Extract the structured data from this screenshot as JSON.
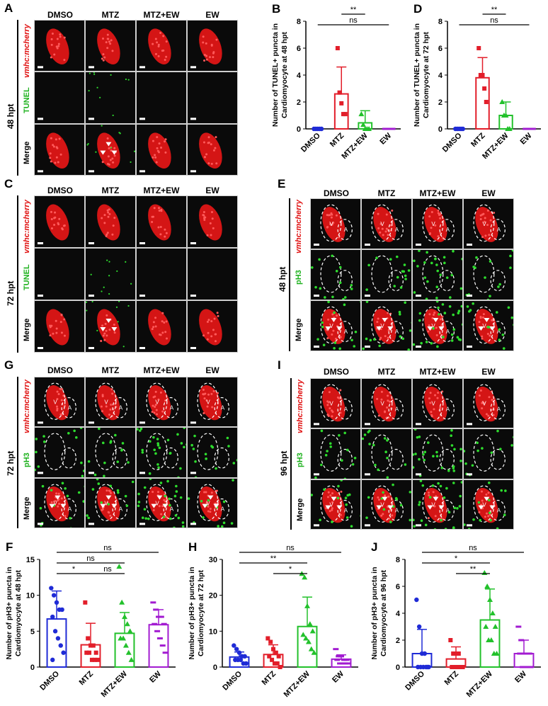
{
  "colors": {
    "dmso": "#1f2bd6",
    "mtz": "#e21e2a",
    "mtzew": "#22c12b",
    "ew": "#a21bd1",
    "red": "#e01010",
    "green": "#1fb21f"
  },
  "groups": [
    "DMSO",
    "MTZ",
    "MTZ+EW",
    "EW"
  ],
  "row_labels": {
    "marker": "vmhc:mcherry",
    "tunel": "TUNEL",
    "ph3": "pH3",
    "merge": "Merge"
  },
  "chamber_labels": {
    "v": "V",
    "a": "A"
  },
  "panels": {
    "A": {
      "letter": "A",
      "time": "48 hpt"
    },
    "C": {
      "letter": "C",
      "time": "72 hpt"
    },
    "E": {
      "letter": "E",
      "time": "48 hpt"
    },
    "G": {
      "letter": "G",
      "time": "72 hpt"
    },
    "I": {
      "letter": "I",
      "time": "96 hpt"
    }
  },
  "chart_data": [
    {
      "id": "B",
      "letter": "B",
      "type": "bar",
      "categories": [
        "DMSO",
        "MTZ",
        "MTZ+EW",
        "EW"
      ],
      "ylabel": "Number of  TUNEL+ puncta in Cardiomyocyte at 48 hpt",
      "ylim": [
        0,
        8
      ],
      "yticks": [
        0,
        2,
        4,
        6,
        8
      ],
      "means": [
        0,
        2.6,
        0.45,
        0
      ],
      "sd": [
        0,
        2.0,
        0.9,
        0
      ],
      "points": [
        [
          0,
          0,
          0,
          0,
          0
        ],
        [
          6,
          2.7,
          1.9,
          1.1,
          1.1
        ],
        [
          1.1,
          0.3,
          0,
          0,
          0
        ],
        [
          0,
          0,
          0,
          0,
          0
        ]
      ],
      "sig": [
        {
          "from": 0,
          "to": 3,
          "label": "ns",
          "level": 0
        },
        {
          "from": 1,
          "to": 2,
          "label": "**",
          "level": 1
        }
      ]
    },
    {
      "id": "D",
      "letter": "D",
      "type": "bar",
      "categories": [
        "DMSO",
        "MTZ",
        "MTZ+EW",
        "EW"
      ],
      "ylabel": "Number of  TUNEL+ puncta in Cardiomyocyte at 72 hpt",
      "ylim": [
        0,
        8
      ],
      "yticks": [
        0,
        2,
        4,
        6,
        8
      ],
      "means": [
        0,
        3.8,
        1.0,
        0
      ],
      "sd": [
        0,
        1.5,
        1.0,
        0
      ],
      "points": [
        [
          0,
          0,
          0,
          0,
          0
        ],
        [
          6,
          4,
          4,
          3,
          2
        ],
        [
          2,
          1,
          1,
          0,
          0
        ],
        [
          0,
          0,
          0,
          0,
          0
        ]
      ],
      "sig": [
        {
          "from": 0,
          "to": 3,
          "label": "ns",
          "level": 0
        },
        {
          "from": 1,
          "to": 2,
          "label": "**",
          "level": 1
        }
      ]
    },
    {
      "id": "F",
      "letter": "F",
      "type": "bar",
      "categories": [
        "DMSO",
        "MTZ",
        "MTZ+EW",
        "EW"
      ],
      "ylabel": "Number of pH3+ puncta in Cardiomyocyte at 48 hpt",
      "ylim": [
        0,
        15
      ],
      "yticks": [
        0,
        5,
        10,
        15
      ],
      "means": [
        6.7,
        3.1,
        4.7,
        5.9
      ],
      "sd": [
        3.9,
        3.0,
        2.9,
        2.1
      ],
      "points": [
        [
          11,
          10,
          9,
          8,
          8,
          7,
          5,
          4,
          3,
          2,
          1
        ],
        [
          9,
          4,
          3,
          3,
          2,
          2,
          2,
          1,
          1,
          1
        ],
        [
          14,
          9,
          7,
          6,
          5,
          4,
          4,
          3,
          2,
          1
        ],
        [
          9,
          8,
          7,
          7,
          6,
          6,
          5,
          4,
          3,
          2
        ]
      ],
      "sig": [
        {
          "from": 0,
          "to": 3,
          "label": "ns",
          "level": 2
        },
        {
          "from": 0,
          "to": 2,
          "label": "ns",
          "level": 1
        },
        {
          "from": 1,
          "to": 2,
          "label": "ns",
          "level": 0
        },
        {
          "from": 0,
          "to": 1,
          "label": "*",
          "level": 0
        }
      ]
    },
    {
      "id": "H",
      "letter": "H",
      "type": "bar",
      "categories": [
        "DMSO",
        "MTZ",
        "MTZ+EW",
        "EW"
      ],
      "ylabel": "Number of pH3+ puncta in Cardiomyocyte at 72 hpt",
      "ylim": [
        0,
        30
      ],
      "yticks": [
        0,
        10,
        20,
        30
      ],
      "means": [
        2.8,
        3.5,
        11.3,
        2.2
      ],
      "sd": [
        1.4,
        2.7,
        8.2,
        1.2
      ],
      "points": [
        [
          6,
          5,
          4,
          3,
          3,
          2,
          2,
          2,
          1,
          1
        ],
        [
          8,
          7,
          5,
          4,
          3,
          3,
          2,
          1,
          1,
          0
        ],
        [
          26,
          25,
          17,
          12,
          10,
          9,
          8,
          7,
          5,
          4
        ],
        [
          5,
          3,
          3,
          2,
          2,
          2,
          1,
          1,
          1,
          1
        ]
      ],
      "sig": [
        {
          "from": 0,
          "to": 3,
          "label": "ns",
          "level": 2
        },
        {
          "from": 0,
          "to": 2,
          "label": "**",
          "level": 1
        },
        {
          "from": 1,
          "to": 2,
          "label": "*",
          "level": 0
        }
      ]
    },
    {
      "id": "J",
      "letter": "J",
      "type": "bar",
      "categories": [
        "DMSO",
        "MTZ",
        "MTZ+EW",
        "EW"
      ],
      "ylabel": "Number of pH3+ puncta in Cardiomyocyte at 96 hpt",
      "ylim": [
        0,
        8
      ],
      "yticks": [
        0,
        2,
        4,
        6,
        8
      ],
      "means": [
        1.0,
        0.6,
        3.5,
        1.0
      ],
      "sd": [
        1.8,
        0.9,
        2.3,
        1.0
      ],
      "points": [
        [
          5,
          3,
          1,
          1,
          0,
          0,
          0,
          0,
          0,
          0
        ],
        [
          2,
          1,
          1,
          1,
          0,
          0,
          0,
          0,
          0,
          0
        ],
        [
          7,
          6,
          5,
          4,
          3,
          3,
          2,
          2,
          1,
          1
        ],
        [
          3,
          2,
          1,
          1,
          1,
          1,
          0,
          0,
          0,
          0
        ]
      ],
      "sig": [
        {
          "from": 0,
          "to": 3,
          "label": "ns",
          "level": 2
        },
        {
          "from": 0,
          "to": 2,
          "label": "*",
          "level": 1
        },
        {
          "from": 1,
          "to": 2,
          "label": "**",
          "level": 0
        }
      ]
    }
  ]
}
